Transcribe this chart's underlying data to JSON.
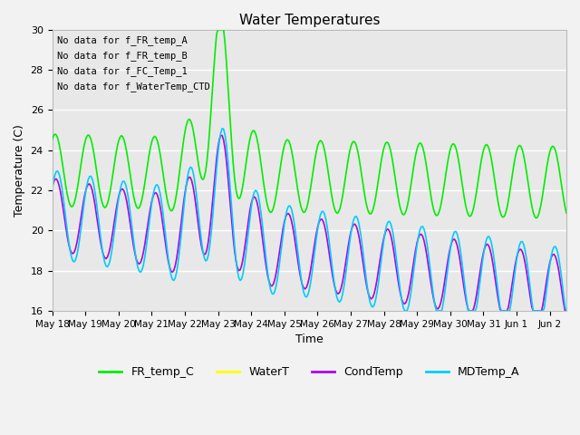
{
  "title": "Water Temperatures",
  "xlabel": "Time",
  "ylabel": "Temperature (C)",
  "ylim": [
    16,
    30
  ],
  "yticks": [
    16,
    18,
    20,
    22,
    24,
    26,
    28,
    30
  ],
  "text_lines": [
    "No data for f_FR_temp_A",
    "No data for f_FR_temp_B",
    "No data for f_FC_Temp_1",
    "No data for f_WaterTemp_CTD"
  ],
  "series": {
    "FR_temp_C": {
      "color": "#00ee00",
      "linewidth": 1.2,
      "zorder": 3
    },
    "WaterT": {
      "color": "#ffff00",
      "linewidth": 1.2,
      "zorder": 2
    },
    "CondTemp": {
      "color": "#aa00ff",
      "linewidth": 1.2,
      "zorder": 2
    },
    "MDTemp_A": {
      "color": "#00ccff",
      "linewidth": 1.2,
      "zorder": 2
    }
  },
  "legend_labels": [
    "FR_temp_C",
    "WaterT",
    "CondTemp",
    "MDTemp_A"
  ],
  "legend_colors": [
    "#00ee00",
    "#ffff00",
    "#aa00ff",
    "#00ccff"
  ],
  "background_color": "#f2f2f2",
  "plot_bg_color": "#e8e8e8",
  "grid_color": "#ffffff",
  "font_size": 9,
  "title_font_size": 11
}
